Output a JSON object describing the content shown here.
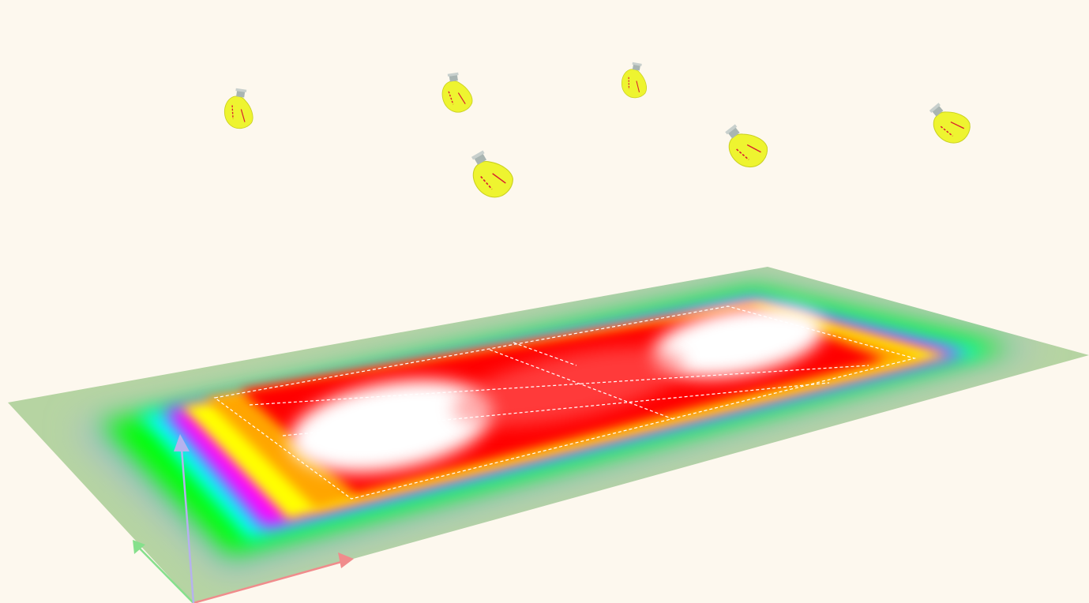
{
  "scene": {
    "background": "#fdf8ee",
    "field": {
      "colors": [
        "#ffffff",
        "#ff0000",
        "#ffa500",
        "#ffff00",
        "#ff00ff",
        "#00ffff",
        "#00ff00",
        "#9bb7d6",
        "#b6d4a2"
      ]
    },
    "court_line_color": "#ffffff",
    "luminaires": [
      {
        "name": "luminaire-1",
        "icon": "floodlight-icon"
      },
      {
        "name": "luminaire-2",
        "icon": "floodlight-icon"
      },
      {
        "name": "luminaire-3",
        "icon": "floodlight-icon"
      },
      {
        "name": "luminaire-4",
        "icon": "floodlight-icon"
      },
      {
        "name": "luminaire-5",
        "icon": "floodlight-icon"
      },
      {
        "name": "luminaire-6",
        "icon": "floodlight-icon"
      }
    ],
    "luminaire_colors": {
      "body": "#eef430",
      "cap": "#a9b5b2",
      "rib": "#d8202e"
    },
    "axes": {
      "x": {
        "color": "#f08c8c"
      },
      "y": {
        "color": "#86e08c"
      },
      "z": {
        "color": "#b6b2ee"
      }
    }
  }
}
